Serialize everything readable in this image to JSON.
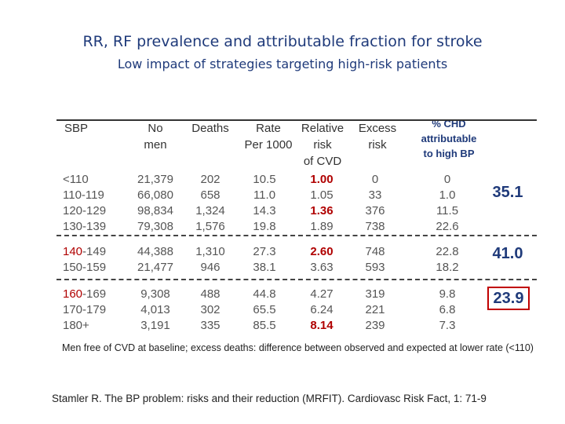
{
  "title": "RR, RF prevalence and attributable fraction for stroke",
  "subtitle": "Low impact of strategies targeting high-risk patients",
  "headers": {
    "sbp": "SBP",
    "no_men": [
      "No",
      "men"
    ],
    "deaths": "Deaths",
    "rate": [
      "Rate",
      "Per 1000"
    ],
    "relative_risk": [
      "Relative",
      "risk",
      "of CVD"
    ],
    "excess_risk": [
      "Excess",
      "risk"
    ],
    "chd": [
      "% CHD",
      "attributable",
      "to high BP"
    ]
  },
  "groups": [
    {
      "sbp": [
        "<110",
        "110-119",
        "120-129",
        "130-139"
      ],
      "no_men": [
        "21,379",
        "66,080",
        "98,834",
        "79,308"
      ],
      "deaths": [
        "202",
        "658",
        "1,324",
        "1,576"
      ],
      "rate": [
        "10.5",
        "11.0",
        "14.3",
        "19.8"
      ],
      "relative_risk": [
        "1.00",
        "1.05",
        "1.36",
        "1.89"
      ],
      "excess": [
        "0",
        "33",
        "376",
        "738"
      ],
      "chd": [
        "0",
        "1.0",
        "11.5",
        "22.6"
      ],
      "total": "35.1"
    },
    {
      "sbp": [
        "140-149",
        "150-159"
      ],
      "no_men": [
        "44,388",
        "21,477"
      ],
      "deaths": [
        "1,310",
        "946"
      ],
      "rate": [
        "27.3",
        "38.1"
      ],
      "relative_risk": [
        "2.60",
        "3.63"
      ],
      "excess": [
        "748",
        "593"
      ],
      "chd": [
        "22.8",
        "18.2"
      ],
      "total": "41.0"
    },
    {
      "sbp": [
        "160-169",
        "170-179",
        "180+"
      ],
      "no_men": [
        "9,308",
        "4,013",
        "3,191"
      ],
      "deaths": [
        "488",
        "302",
        "335"
      ],
      "rate": [
        "44.8",
        "65.5",
        "85.5"
      ],
      "relative_risk": [
        "4.27",
        "6.24",
        "8.14"
      ],
      "excess": [
        "319",
        "221",
        "239"
      ],
      "chd": [
        "9.8",
        "6.8",
        "7.3"
      ],
      "total": "23.9"
    }
  ],
  "footnote": "Men free of CVD at baseline; excess deaths: difference between observed and expected at lower rate (<110)",
  "citation": "Stamler R. The BP problem: risks and their reduction (MRFIT). Cardiovasc Risk Fact, 1: 71-9"
}
